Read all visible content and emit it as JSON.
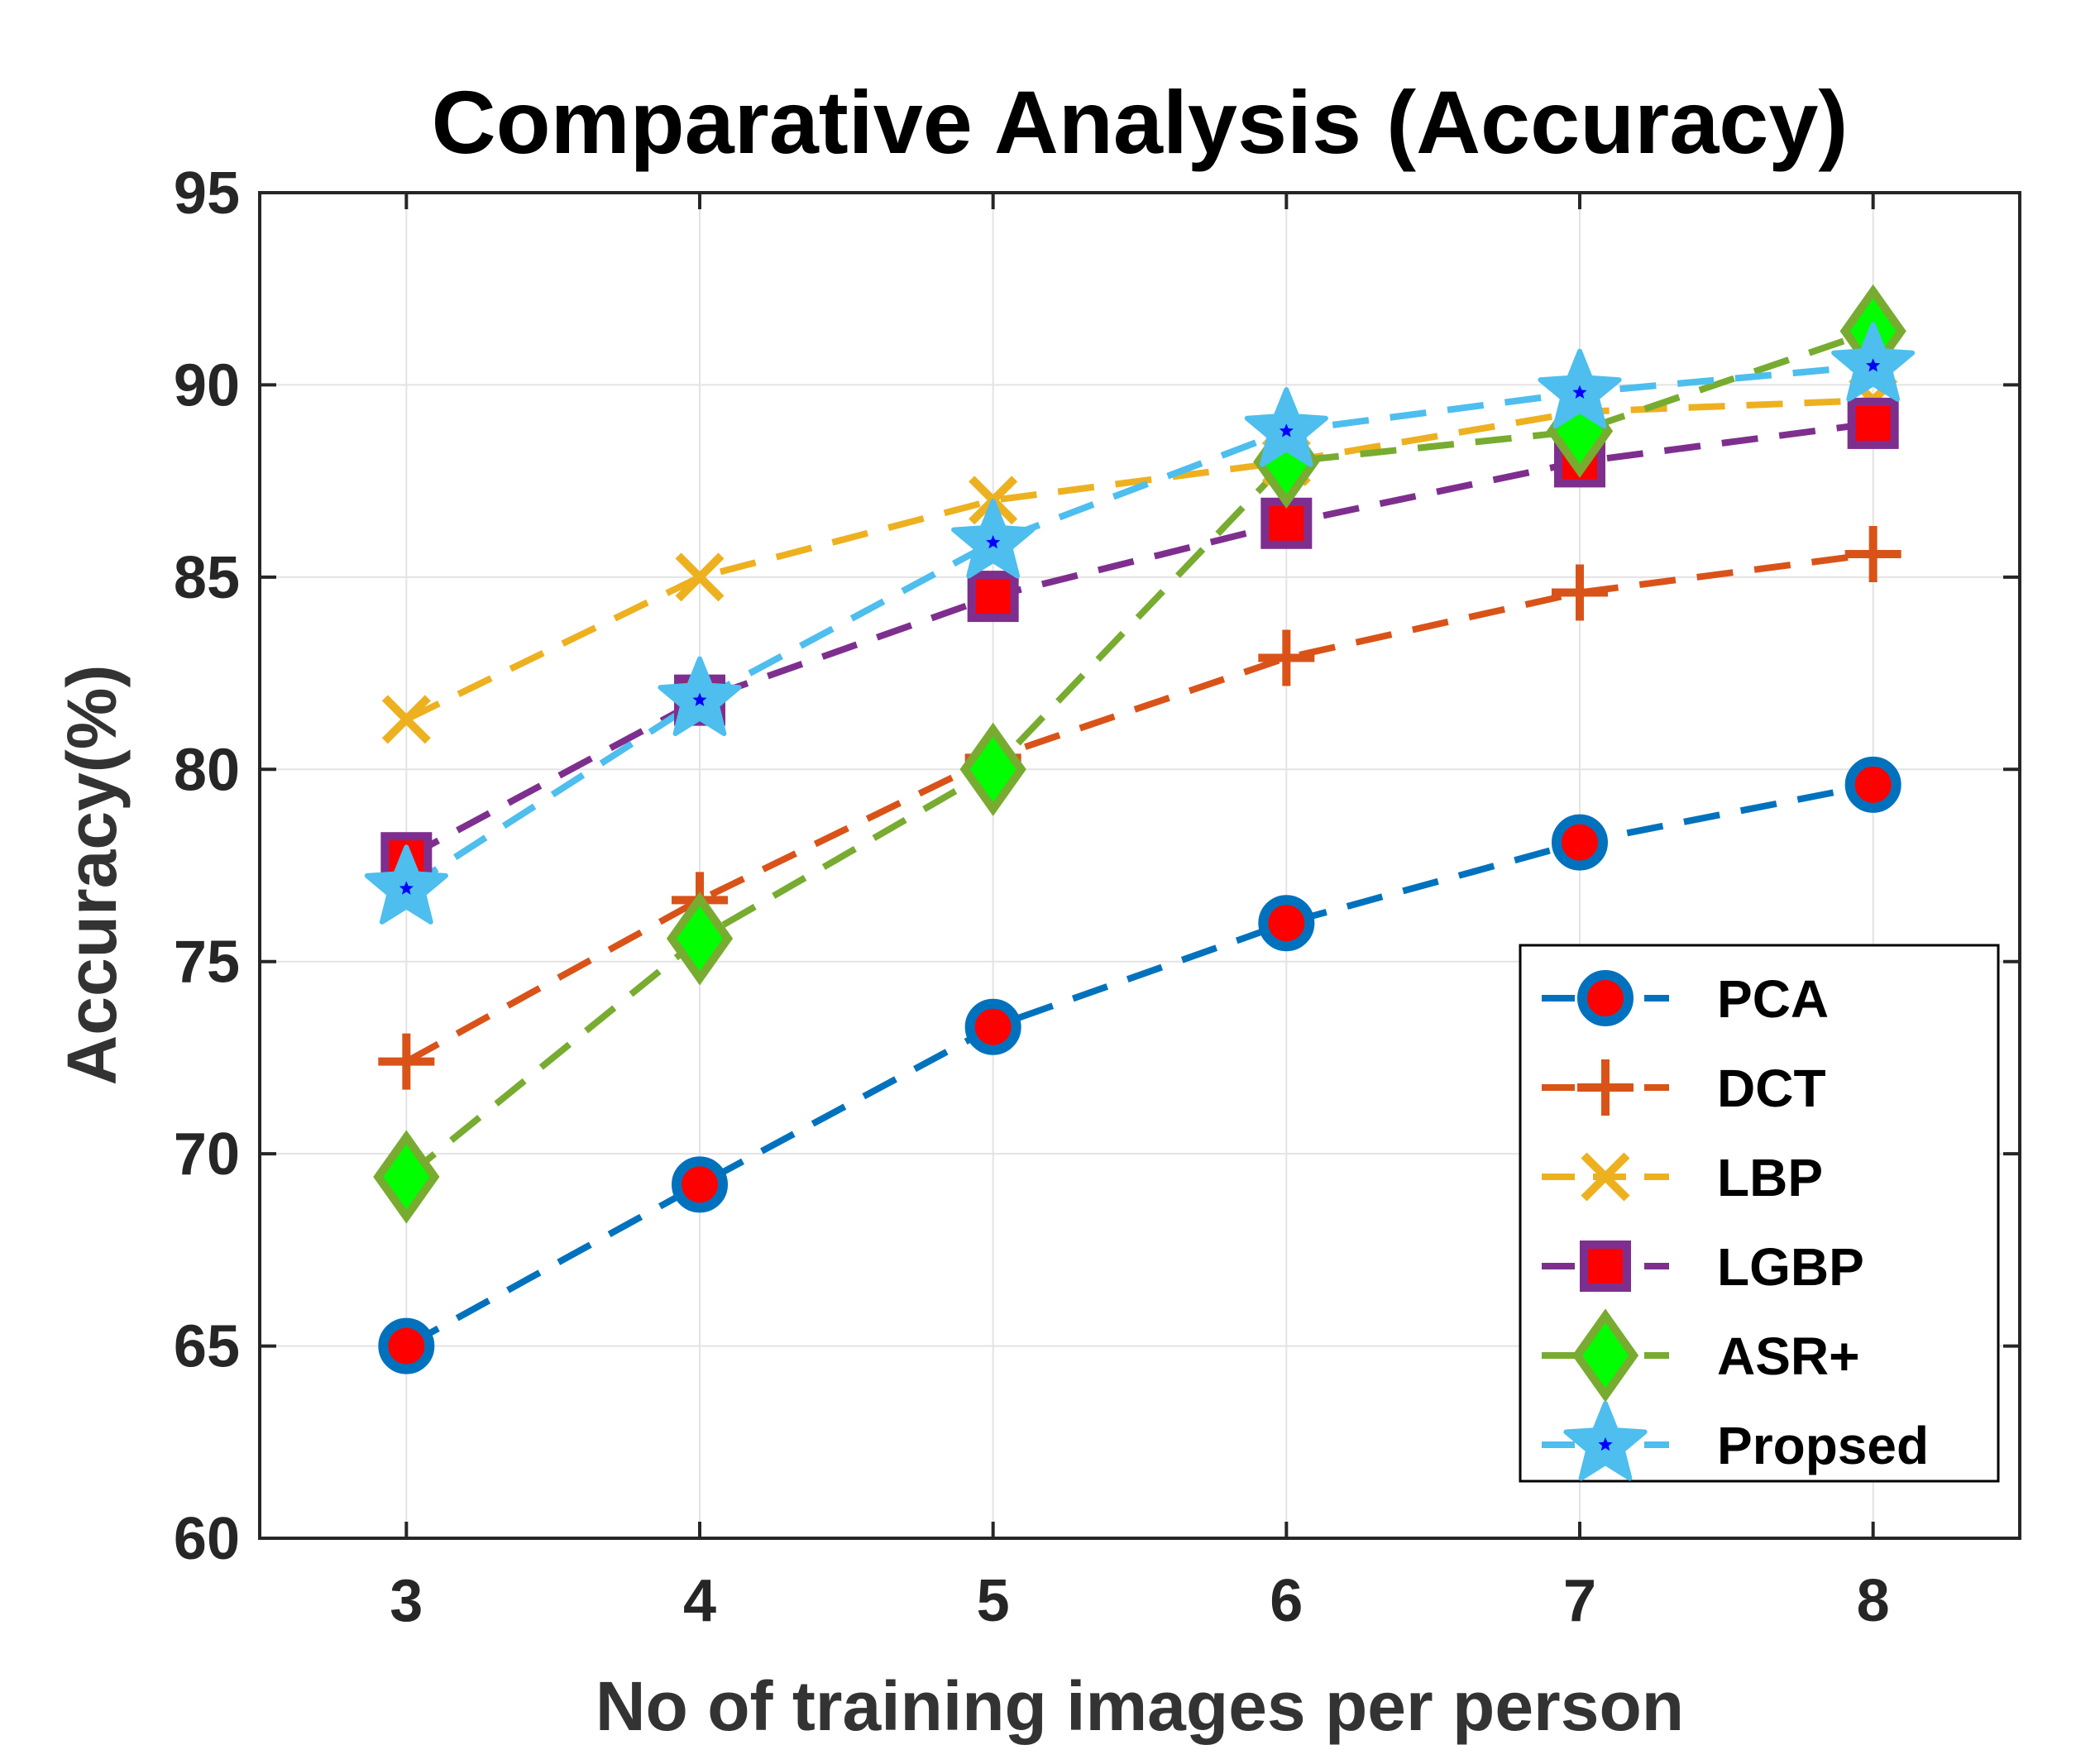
{
  "chart_data": {
    "type": "line",
    "title": "Comparative Analysis (Accuracy)",
    "xlabel": "No of training images per person",
    "ylabel": "Accuracy(%)",
    "x": [
      3,
      4,
      5,
      6,
      7,
      8
    ],
    "xlim": [
      2.5,
      8.5
    ],
    "ylim": [
      60,
      95
    ],
    "yticks": [
      60,
      65,
      70,
      75,
      80,
      85,
      90,
      95
    ],
    "xticks": [
      3,
      4,
      5,
      6,
      7,
      8
    ],
    "grid": true,
    "legend_position": "bottom-right",
    "series": [
      {
        "name": "PCA",
        "values": [
          65.0,
          69.2,
          73.3,
          76.0,
          78.1,
          79.6
        ],
        "color": "#0072BD",
        "marker": "circle",
        "marker_fill": "#FF0000"
      },
      {
        "name": "DCT",
        "values": [
          72.4,
          76.6,
          80.3,
          82.9,
          84.6,
          85.6
        ],
        "color": "#D95319",
        "marker": "plus",
        "marker_fill": "none"
      },
      {
        "name": "LBP",
        "values": [
          81.3,
          85.0,
          87.0,
          88.0,
          89.3,
          89.6
        ],
        "color": "#EDB120",
        "marker": "x",
        "marker_fill": "none"
      },
      {
        "name": "LGBP",
        "values": [
          77.7,
          81.8,
          84.5,
          86.4,
          88.0,
          89.0
        ],
        "color": "#7E2F8E",
        "marker": "square",
        "marker_fill": "#FF0000"
      },
      {
        "name": "ASR+",
        "values": [
          69.4,
          75.6,
          80.0,
          88.0,
          88.8,
          91.4
        ],
        "color": "#77AC30",
        "marker": "diamond",
        "marker_fill": "#00FF00"
      },
      {
        "name": "Propsed",
        "values": [
          76.9,
          81.8,
          85.9,
          88.8,
          89.8,
          90.5
        ],
        "color": "#4DBEEE",
        "marker": "star",
        "marker_fill": "#0000FF"
      }
    ]
  }
}
